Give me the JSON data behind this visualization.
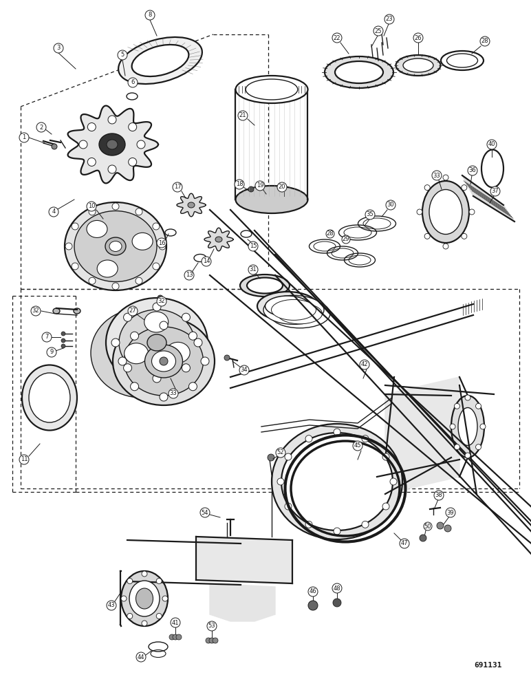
{
  "fig_width": 7.72,
  "fig_height": 10.0,
  "dpi": 100,
  "bg_color": "#ffffff",
  "diagram_color": "#1a1a1a",
  "part_number_text": "691131",
  "part_number_fontsize": 8
}
